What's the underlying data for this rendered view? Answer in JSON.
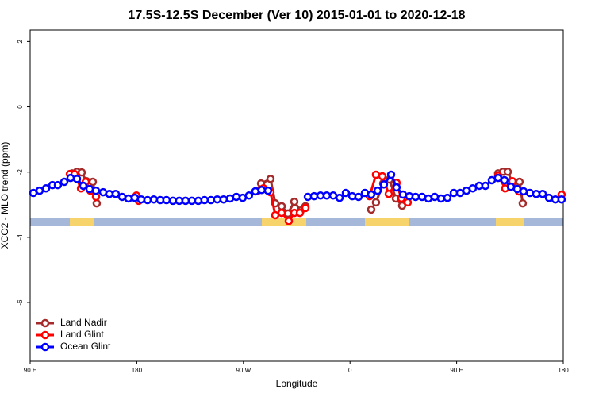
{
  "chart_data": {
    "type": "line",
    "title": "17.5S-12.5S December (Ver 10)   2015-01-01 to 2020-12-18",
    "x_label": "Longitude",
    "y_label": "XCO2 - MLO trend (ppm)",
    "xlim": [
      90,
      540
    ],
    "ylim": [
      -7.8,
      2.35
    ],
    "xticks": [
      {
        "value": 90,
        "label": "90 E"
      },
      180,
      {
        "value": 270,
        "label": "90 W"
      },
      {
        "value": 360,
        "label": "0"
      },
      {
        "value": 450,
        "label": "90 E"
      },
      {
        "value": 540,
        "label": "180"
      }
    ],
    "yticks": [
      2,
      0,
      -2,
      -4,
      -6
    ],
    "legend": "bottom-left",
    "series": [
      {
        "name": "Land Nadir",
        "color": "#a52a2a",
        "x": [
          125.5,
          129.5,
          133.5,
          137.5,
          142.9,
          146.2,
          200,
          284.9,
          292.9,
          296.9,
          302.3,
          307.6,
          313.0,
          318.3,
          322.4,
          350,
          377.9,
          381.9,
          388.0,
          393.3,
          398.7,
          404.0,
          450,
          485.0,
          489.1,
          493.1,
          497.1,
          503.1,
          505.8
        ],
        "values": [
          -2.04,
          -1.99,
          -2.01,
          -2.28,
          -2.3,
          -2.96,
          null,
          -2.35,
          -2.21,
          -2.96,
          -3.05,
          -3.27,
          -2.91,
          -3.18,
          -3.05,
          null,
          -3.15,
          -2.93,
          -2.35,
          -2.23,
          -2.81,
          -3.03,
          null,
          -2.04,
          -1.99,
          -1.99,
          -2.33,
          -2.3,
          -2.96
        ]
      },
      {
        "name": "Land Glint",
        "color": "#ff0000",
        "x": [
          123.5,
          127.5,
          132.9,
          136.9,
          140.9,
          145.6,
          160,
          179.7,
          181.7,
          240,
          282.2,
          286.9,
          292.9,
          296.9,
          302.3,
          308.3,
          313.0,
          317.7,
          322.4,
          350,
          376.6,
          381.9,
          387.3,
          392.7,
          399.3,
          403.4,
          408.7,
          450,
          485.0,
          491.0,
          497.1,
          502.5,
          520,
          538.6
        ],
        "values": [
          -2.06,
          -2.06,
          -2.5,
          -2.3,
          -2.57,
          -2.76,
          null,
          -2.72,
          -2.88,
          null,
          -2.57,
          -2.5,
          -2.62,
          -3.32,
          -3.25,
          -3.5,
          -3.25,
          -3.25,
          -3.1,
          null,
          -2.74,
          -2.08,
          -2.13,
          -2.67,
          -2.33,
          -2.81,
          -2.93,
          null,
          -2.11,
          -2.5,
          -2.28,
          -2.59,
          null,
          -2.69
        ]
      },
      {
        "name": "Ocean Glint",
        "color": "#0000ff",
        "x": [
          92.7,
          98.0,
          103.4,
          108.8,
          113.4,
          118.8,
          124.1,
          129.5,
          134.8,
          140.2,
          145.5,
          151.6,
          156.9,
          162.3,
          167.6,
          173.0,
          178.4,
          183.7,
          189.1,
          194.4,
          199.8,
          205.1,
          210.5,
          215.8,
          221.2,
          226.5,
          231.9,
          237.2,
          242.6,
          247.9,
          253.3,
          258.7,
          264.0,
          269.4,
          274.7,
          280.1,
          285.4,
          290.8,
          305,
          324.4,
          329.7,
          335.1,
          340.4,
          345.8,
          351.2,
          356.5,
          361.9,
          367.2,
          372.6,
          377.9,
          383.3,
          388.6,
          394.7,
          399.3,
          404.7,
          410.1,
          415.4,
          420.8,
          426.1,
          431.5,
          436.8,
          442.2,
          447.6,
          452.9,
          458.3,
          463.6,
          469.0,
          474.3,
          479.7,
          485.0,
          490.4,
          495.8,
          501.1,
          506.5,
          511.8,
          517.2,
          522.6,
          527.9,
          533.3,
          538.6
        ],
        "values": [
          -2.64,
          -2.57,
          -2.5,
          -2.4,
          -2.4,
          -2.3,
          -2.18,
          -2.21,
          -2.42,
          -2.52,
          -2.57,
          -2.62,
          -2.67,
          -2.67,
          -2.76,
          -2.81,
          -2.79,
          -2.84,
          -2.86,
          -2.84,
          -2.86,
          -2.86,
          -2.88,
          -2.88,
          -2.88,
          -2.88,
          -2.88,
          -2.86,
          -2.86,
          -2.84,
          -2.84,
          -2.81,
          -2.76,
          -2.79,
          -2.72,
          -2.59,
          -2.55,
          -2.57,
          null,
          -2.76,
          -2.74,
          -2.72,
          -2.72,
          -2.72,
          -2.79,
          -2.64,
          -2.74,
          -2.76,
          -2.64,
          -2.69,
          -2.57,
          -2.38,
          -2.08,
          -2.47,
          -2.69,
          -2.74,
          -2.76,
          -2.76,
          -2.81,
          -2.76,
          -2.81,
          -2.79,
          -2.64,
          -2.64,
          -2.57,
          -2.5,
          -2.42,
          -2.42,
          -2.25,
          -2.18,
          -2.25,
          -2.45,
          -2.52,
          -2.59,
          -2.64,
          -2.67,
          -2.67,
          -2.79,
          -2.84,
          -2.84
        ]
      }
    ]
  }
}
